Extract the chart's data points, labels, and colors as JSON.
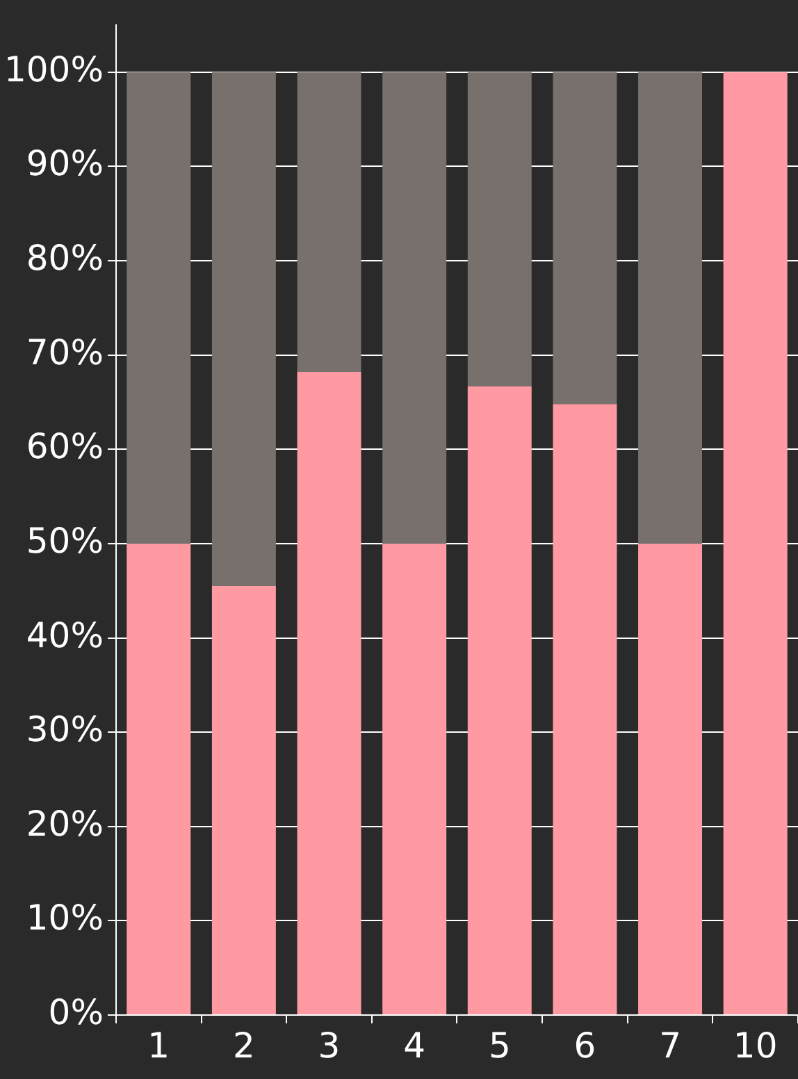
{
  "chart_data": {
    "type": "bar",
    "stacked": true,
    "categories": [
      "1",
      "2",
      "3",
      "4",
      "5",
      "6",
      "7",
      "10"
    ],
    "series": [
      {
        "color": "#ff9aa2",
        "values": [
          50,
          45.5,
          68.2,
          50,
          66.7,
          64.8,
          50,
          100
        ]
      },
      {
        "color": "#78706c",
        "values": [
          50,
          54.5,
          31.8,
          50,
          33.3,
          35.2,
          50,
          0
        ]
      }
    ],
    "ylim": [
      0,
      105
    ],
    "yticks": [
      {
        "value": 0,
        "label": "0%"
      },
      {
        "value": 10,
        "label": "10%"
      },
      {
        "value": 20,
        "label": "20%"
      },
      {
        "value": 30,
        "label": "30%"
      },
      {
        "value": 40,
        "label": "40%"
      },
      {
        "value": 50,
        "label": "50%"
      },
      {
        "value": 60,
        "label": "60%"
      },
      {
        "value": 70,
        "label": "70%"
      },
      {
        "value": 80,
        "label": "80%"
      },
      {
        "value": 90,
        "label": "90%"
      },
      {
        "value": 100,
        "label": "100%"
      }
    ],
    "grid": "y",
    "legend": false
  }
}
